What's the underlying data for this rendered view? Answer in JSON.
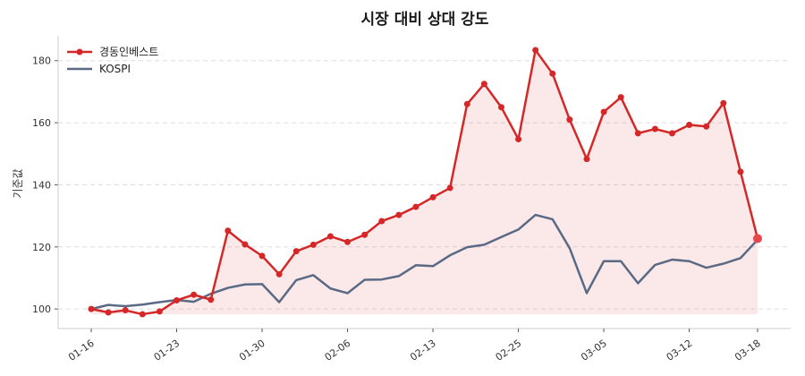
{
  "chart_data": {
    "type": "line",
    "title": "시장 대비 상대 강도",
    "xlabel": "",
    "ylabel": "기준값",
    "ylim": [
      93.7,
      188
    ],
    "yticks": [
      100,
      120,
      140,
      160,
      180
    ],
    "x_ticks": [
      {
        "index": 0,
        "label": "01-16"
      },
      {
        "index": 5,
        "label": "01-23"
      },
      {
        "index": 10,
        "label": "01-30"
      },
      {
        "index": 15,
        "label": "02-06"
      },
      {
        "index": 20,
        "label": "02-13"
      },
      {
        "index": 25,
        "label": "02-25"
      },
      {
        "index": 30,
        "label": "03-05"
      },
      {
        "index": 35,
        "label": "03-12"
      },
      {
        "index": 39,
        "label": "03-18"
      }
    ],
    "grid": "y-dashed",
    "legend": "top-left",
    "series": [
      {
        "name": "경동인베스트",
        "color": "#d62728",
        "markers": true,
        "fill": true,
        "values": [
          100,
          98.9,
          99.6,
          98.3,
          99.2,
          102.8,
          104.6,
          103.0,
          125.2,
          120.8,
          117.1,
          111.2,
          118.6,
          120.7,
          123.4,
          121.6,
          123.9,
          128.3,
          130.3,
          132.9,
          136.0,
          139.0,
          166.0,
          172.5,
          165.0,
          154.7,
          183.4,
          175.8,
          161.0,
          148.3,
          163.5,
          168.2,
          156.6,
          158.0,
          156.6,
          159.3,
          158.8,
          166.3,
          144.2,
          122.7
        ]
      },
      {
        "name": "KOSPI",
        "color": "#5a6a85",
        "markers": false,
        "fill": false,
        "values": [
          100,
          101.3,
          100.9,
          101.4,
          102.2,
          102.9,
          102.3,
          104.9,
          106.8,
          107.9,
          108.0,
          102.2,
          109.3,
          110.9,
          106.6,
          105.1,
          109.4,
          109.5,
          110.6,
          114.1,
          113.8,
          117.3,
          119.9,
          120.7,
          123.2,
          125.6,
          130.3,
          128.9,
          119.6,
          105.1,
          115.4,
          115.4,
          108.3,
          114.2,
          115.9,
          115.4,
          113.3,
          114.6,
          116.4,
          122.3
        ]
      }
    ]
  }
}
